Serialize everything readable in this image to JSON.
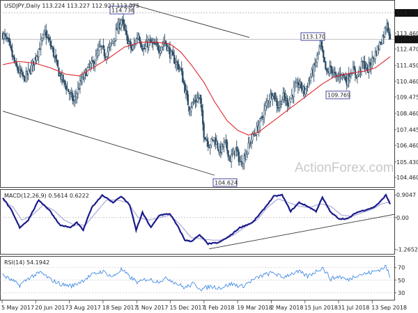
{
  "header": {
    "price_title": "USDJPY,Daily  113.224 113.227 112.927 113.075",
    "macd_title": "MACD(12,26,9) 0.5614 0.6222",
    "rsi_title": "RSI(14) 54.1942"
  },
  "watermark": "ActionForex.com",
  "colors": {
    "candle": "#2f4f68",
    "ema": "#e0242c",
    "macd": "#1a1a8c",
    "signal": "#9a9ad0",
    "rsi": "#2f7fe0",
    "trendline": "#333333",
    "label_border": "#1a1a8c",
    "label_text": "#1a1a8c",
    "current_bg": "#111111"
  },
  "chart_data": [
    {
      "type": "candlestick",
      "title": "USDJPY,Daily",
      "ylim": [
        103.9,
        115.45
      ],
      "y_ticks": [
        "114.730",
        "113.460",
        "112.470",
        "111.450",
        "110.460",
        "109.475",
        "108.460",
        "107.445",
        "106.460",
        "105.430",
        "104.460"
      ],
      "x_ticks": [
        "5 May 2017",
        "20 Jun 2017",
        "3 Aug 2017",
        "18 Sep 2017",
        "1 Nov 2017",
        "15 Dec 2017",
        "1 Feb 2018",
        "19 Mar 2018",
        "2 May 2018",
        "15 Jun 2018",
        "31 Jul 2018",
        "13 Sep 2018"
      ],
      "current_price": "113.075",
      "top_price_tag": "114.730",
      "price_labels": [
        {
          "text": "114.736",
          "value": 114.736
        },
        {
          "text": "113.170",
          "value": 113.17
        },
        {
          "text": "109.769",
          "value": 109.769
        },
        {
          "text": "104.624",
          "value": 104.624
        }
      ],
      "close_anchors": [
        [
          0,
          113.4
        ],
        [
          5,
          112.9
        ],
        [
          12,
          111.4
        ],
        [
          20,
          110.6
        ],
        [
          26,
          111.2
        ],
        [
          33,
          112.3
        ],
        [
          40,
          113.5
        ],
        [
          47,
          112.4
        ],
        [
          53,
          111.0
        ],
        [
          60,
          110.1
        ],
        [
          67,
          109.2
        ],
        [
          73,
          110.3
        ],
        [
          80,
          111.2
        ],
        [
          87,
          111.7
        ],
        [
          92,
          112.6
        ],
        [
          97,
          112.1
        ],
        [
          103,
          112.8
        ],
        [
          108,
          113.7
        ],
        [
          112,
          114.3
        ],
        [
          117,
          113.2
        ],
        [
          122,
          112.4
        ],
        [
          128,
          113.4
        ],
        [
          133,
          112.4
        ],
        [
          138,
          112.9
        ],
        [
          143,
          112.7
        ],
        [
          148,
          112.5
        ],
        [
          153,
          113.0
        ],
        [
          158,
          112.2
        ],
        [
          163,
          111.7
        ],
        [
          168,
          111.2
        ],
        [
          172,
          110.0
        ],
        [
          176,
          108.8
        ],
        [
          181,
          109.2
        ],
        [
          186,
          109.5
        ],
        [
          190,
          107.2
        ],
        [
          195,
          106.5
        ],
        [
          200,
          106.9
        ],
        [
          205,
          106.1
        ],
        [
          210,
          106.6
        ],
        [
          215,
          105.6
        ],
        [
          220,
          106.2
        ],
        [
          225,
          105.3
        ],
        [
          230,
          106.0
        ],
        [
          235,
          106.9
        ],
        [
          240,
          107.4
        ],
        [
          245,
          108.2
        ],
        [
          250,
          109.2
        ],
        [
          255,
          109.8
        ],
        [
          260,
          108.9
        ],
        [
          265,
          109.5
        ],
        [
          270,
          109.1
        ],
        [
          275,
          109.9
        ],
        [
          280,
          110.3
        ],
        [
          285,
          109.8
        ],
        [
          290,
          110.6
        ],
        [
          295,
          111.4
        ],
        [
          300,
          112.8
        ],
        [
          303,
          111.8
        ],
        [
          306,
          110.9
        ],
        [
          310,
          111.3
        ],
        [
          315,
          110.6
        ],
        [
          320,
          111.0
        ],
        [
          325,
          110.5
        ],
        [
          330,
          111.2
        ],
        [
          335,
          110.8
        ],
        [
          340,
          111.6
        ],
        [
          345,
          111.2
        ],
        [
          350,
          111.9
        ],
        [
          355,
          112.6
        ],
        [
          360,
          113.4
        ],
        [
          363,
          114.2
        ],
        [
          366,
          113.075
        ]
      ],
      "ema_anchors": [
        [
          0,
          111.5
        ],
        [
          15,
          111.7
        ],
        [
          30,
          111.6
        ],
        [
          45,
          111.3
        ],
        [
          60,
          110.9
        ],
        [
          72,
          110.8
        ],
        [
          85,
          111.3
        ],
        [
          100,
          111.9
        ],
        [
          115,
          112.6
        ],
        [
          130,
          112.9
        ],
        [
          145,
          112.9
        ],
        [
          158,
          112.8
        ],
        [
          168,
          112.3
        ],
        [
          178,
          111.5
        ],
        [
          190,
          110.4
        ],
        [
          200,
          109.2
        ],
        [
          212,
          108.0
        ],
        [
          222,
          107.4
        ],
        [
          232,
          107.1
        ],
        [
          242,
          107.3
        ],
        [
          252,
          107.8
        ],
        [
          262,
          108.3
        ],
        [
          272,
          108.8
        ],
        [
          282,
          109.3
        ],
        [
          292,
          109.8
        ],
        [
          302,
          110.3
        ],
        [
          312,
          110.7
        ],
        [
          322,
          110.9
        ],
        [
          332,
          111.0
        ],
        [
          342,
          111.1
        ],
        [
          352,
          111.3
        ],
        [
          360,
          111.7
        ],
        [
          366,
          112.0
        ]
      ],
      "trendlines": [
        {
          "name": "upper-channel",
          "x": [
            120,
            233
          ],
          "y": [
            115.3,
            113.2
          ]
        },
        {
          "name": "lower-channel",
          "x": [
            0,
            200
          ],
          "y": [
            108.6,
            104.6
          ]
        }
      ]
    },
    {
      "type": "line",
      "title": "MACD(12,26,9) 0.5614 0.6222",
      "ylim": [
        -1.45,
        1.05
      ],
      "y_ticks": [
        "0.9047",
        "0.00",
        "-1.2652"
      ],
      "series": [
        {
          "name": "MACD",
          "anchors": [
            [
              0,
              0.8
            ],
            [
              8,
              0.3
            ],
            [
              16,
              -0.4
            ],
            [
              24,
              -0.1
            ],
            [
              34,
              0.7
            ],
            [
              44,
              0.3
            ],
            [
              54,
              -0.3
            ],
            [
              64,
              -0.4
            ],
            [
              70,
              -0.2
            ],
            [
              76,
              -0.5
            ],
            [
              84,
              0.4
            ],
            [
              94,
              0.9
            ],
            [
              104,
              0.6
            ],
            [
              112,
              0.85
            ],
            [
              120,
              0.5
            ],
            [
              126,
              -0.5
            ],
            [
              132,
              0.2
            ],
            [
              140,
              -0.4
            ],
            [
              148,
              0.1
            ],
            [
              158,
              0.15
            ],
            [
              166,
              -0.4
            ],
            [
              172,
              -0.9
            ],
            [
              178,
              -0.95
            ],
            [
              186,
              -0.7
            ],
            [
              194,
              -1.05
            ],
            [
              204,
              -1.0
            ],
            [
              214,
              -0.75
            ],
            [
              224,
              -0.4
            ],
            [
              236,
              -0.2
            ],
            [
              246,
              0.3
            ],
            [
              256,
              0.85
            ],
            [
              264,
              0.9
            ],
            [
              272,
              0.25
            ],
            [
              280,
              0.6
            ],
            [
              288,
              0.45
            ],
            [
              296,
              0.25
            ],
            [
              302,
              0.8
            ],
            [
              310,
              0.2
            ],
            [
              318,
              -0.05
            ],
            [
              326,
              -0.05
            ],
            [
              334,
              0.2
            ],
            [
              342,
              0.3
            ],
            [
              350,
              0.4
            ],
            [
              356,
              0.6
            ],
            [
              362,
              0.9
            ],
            [
              366,
              0.55
            ]
          ]
        },
        {
          "name": "Signal",
          "anchors": [
            [
              0,
              0.7
            ],
            [
              10,
              0.4
            ],
            [
              18,
              -0.1
            ],
            [
              28,
              0.1
            ],
            [
              38,
              0.5
            ],
            [
              48,
              0.3
            ],
            [
              58,
              -0.1
            ],
            [
              68,
              -0.3
            ],
            [
              78,
              -0.3
            ],
            [
              88,
              0.2
            ],
            [
              98,
              0.7
            ],
            [
              108,
              0.7
            ],
            [
              118,
              0.6
            ],
            [
              128,
              0.0
            ],
            [
              138,
              -0.1
            ],
            [
              148,
              0.0
            ],
            [
              158,
              0.1
            ],
            [
              168,
              -0.3
            ],
            [
              178,
              -0.8
            ],
            [
              188,
              -0.85
            ],
            [
              198,
              -0.9
            ],
            [
              208,
              -0.9
            ],
            [
              218,
              -0.7
            ],
            [
              228,
              -0.4
            ],
            [
              240,
              -0.1
            ],
            [
              250,
              0.4
            ],
            [
              260,
              0.75
            ],
            [
              270,
              0.6
            ],
            [
              280,
              0.45
            ],
            [
              290,
              0.4
            ],
            [
              300,
              0.55
            ],
            [
              310,
              0.45
            ],
            [
              320,
              0.1
            ],
            [
              330,
              0.05
            ],
            [
              340,
              0.2
            ],
            [
              350,
              0.35
            ],
            [
              358,
              0.55
            ],
            [
              366,
              0.62
            ]
          ]
        }
      ],
      "trendline": {
        "x": [
          195,
          366
        ],
        "y": [
          -1.25,
          0.1
        ]
      }
    },
    {
      "type": "line",
      "title": "RSI(14) 54.1942",
      "ylim": [
        20,
        85
      ],
      "y_ticks": [
        "70",
        "50",
        "30"
      ],
      "series": [
        {
          "name": "RSI(14)",
          "anchors": [
            [
              0,
              58
            ],
            [
              8,
              50
            ],
            [
              16,
              42
            ],
            [
              26,
              55
            ],
            [
              36,
              62
            ],
            [
              46,
              50
            ],
            [
              56,
              43
            ],
            [
              66,
              41
            ],
            [
              74,
              48
            ],
            [
              84,
              58
            ],
            [
              94,
              64
            ],
            [
              104,
              55
            ],
            [
              112,
              67
            ],
            [
              120,
              55
            ],
            [
              128,
              46
            ],
            [
              136,
              52
            ],
            [
              146,
              48
            ],
            [
              156,
              53
            ],
            [
              164,
              45
            ],
            [
              172,
              38
            ],
            [
              180,
              44
            ],
            [
              188,
              36
            ],
            [
              196,
              40
            ],
            [
              206,
              38
            ],
            [
              216,
              44
            ],
            [
              226,
              40
            ],
            [
              236,
              50
            ],
            [
              246,
              58
            ],
            [
              256,
              62
            ],
            [
              264,
              54
            ],
            [
              272,
              60
            ],
            [
              280,
              63
            ],
            [
              288,
              56
            ],
            [
              296,
              64
            ],
            [
              302,
              70
            ],
            [
              310,
              52
            ],
            [
              318,
              56
            ],
            [
              326,
              50
            ],
            [
              334,
              58
            ],
            [
              342,
              60
            ],
            [
              350,
              63
            ],
            [
              358,
              68
            ],
            [
              362,
              72
            ],
            [
              366,
              54
            ]
          ]
        }
      ]
    }
  ]
}
